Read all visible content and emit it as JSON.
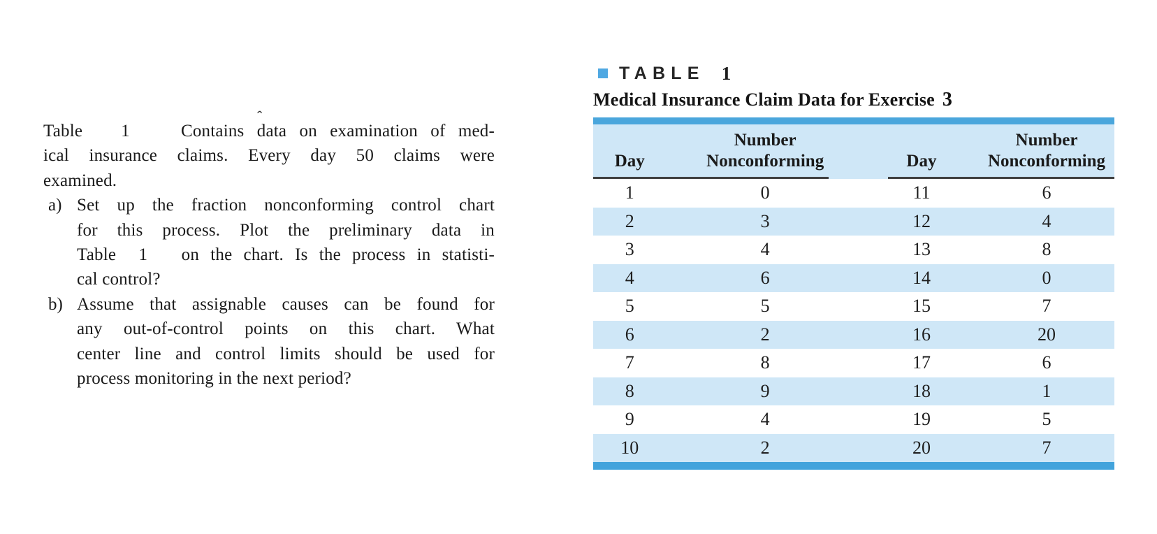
{
  "problem": {
    "caret_artifact": "ˆ",
    "intro_lines": [
      "Table   1    Contains data on examination of med-",
      "ical insurance claims. Every day 50 claims were",
      "examined."
    ],
    "items": [
      {
        "marker": "a)",
        "lines": [
          "Set up the fraction nonconforming control chart",
          "for this process. Plot the preliminary data in",
          "Table  1   on the chart. Is the process in statisti-",
          "cal control?"
        ]
      },
      {
        "marker": "b)",
        "lines": [
          "Assume that assignable causes can be found for",
          "any out-of-control points on this chart. What",
          "center line and control limits should be used for",
          "process monitoring in the next period?"
        ]
      }
    ]
  },
  "table": {
    "caption_label": "TABLE",
    "caption_number": "1",
    "subtitle": "Medical Insurance Claim Data for Exercise",
    "subtitle_number": "3",
    "columns": [
      "Day",
      "Number Nonconforming",
      "Day",
      "Number Nonconforming"
    ],
    "header": {
      "day": "Day",
      "number_line1": "Number",
      "number_line2": "Nonconforming"
    },
    "rows": [
      [
        1,
        0,
        11,
        6
      ],
      [
        2,
        3,
        12,
        4
      ],
      [
        3,
        4,
        13,
        8
      ],
      [
        4,
        6,
        14,
        0
      ],
      [
        5,
        5,
        15,
        7
      ],
      [
        6,
        2,
        16,
        20
      ],
      [
        7,
        8,
        17,
        6
      ],
      [
        8,
        9,
        18,
        1
      ],
      [
        9,
        4,
        19,
        5
      ],
      [
        10,
        2,
        20,
        7
      ]
    ],
    "colors": {
      "bar_blue": "#4aa6dc",
      "row_light_blue": "#cfe7f7",
      "bullet_blue": "#4fa8e2",
      "rule_dark": "#414141"
    }
  }
}
